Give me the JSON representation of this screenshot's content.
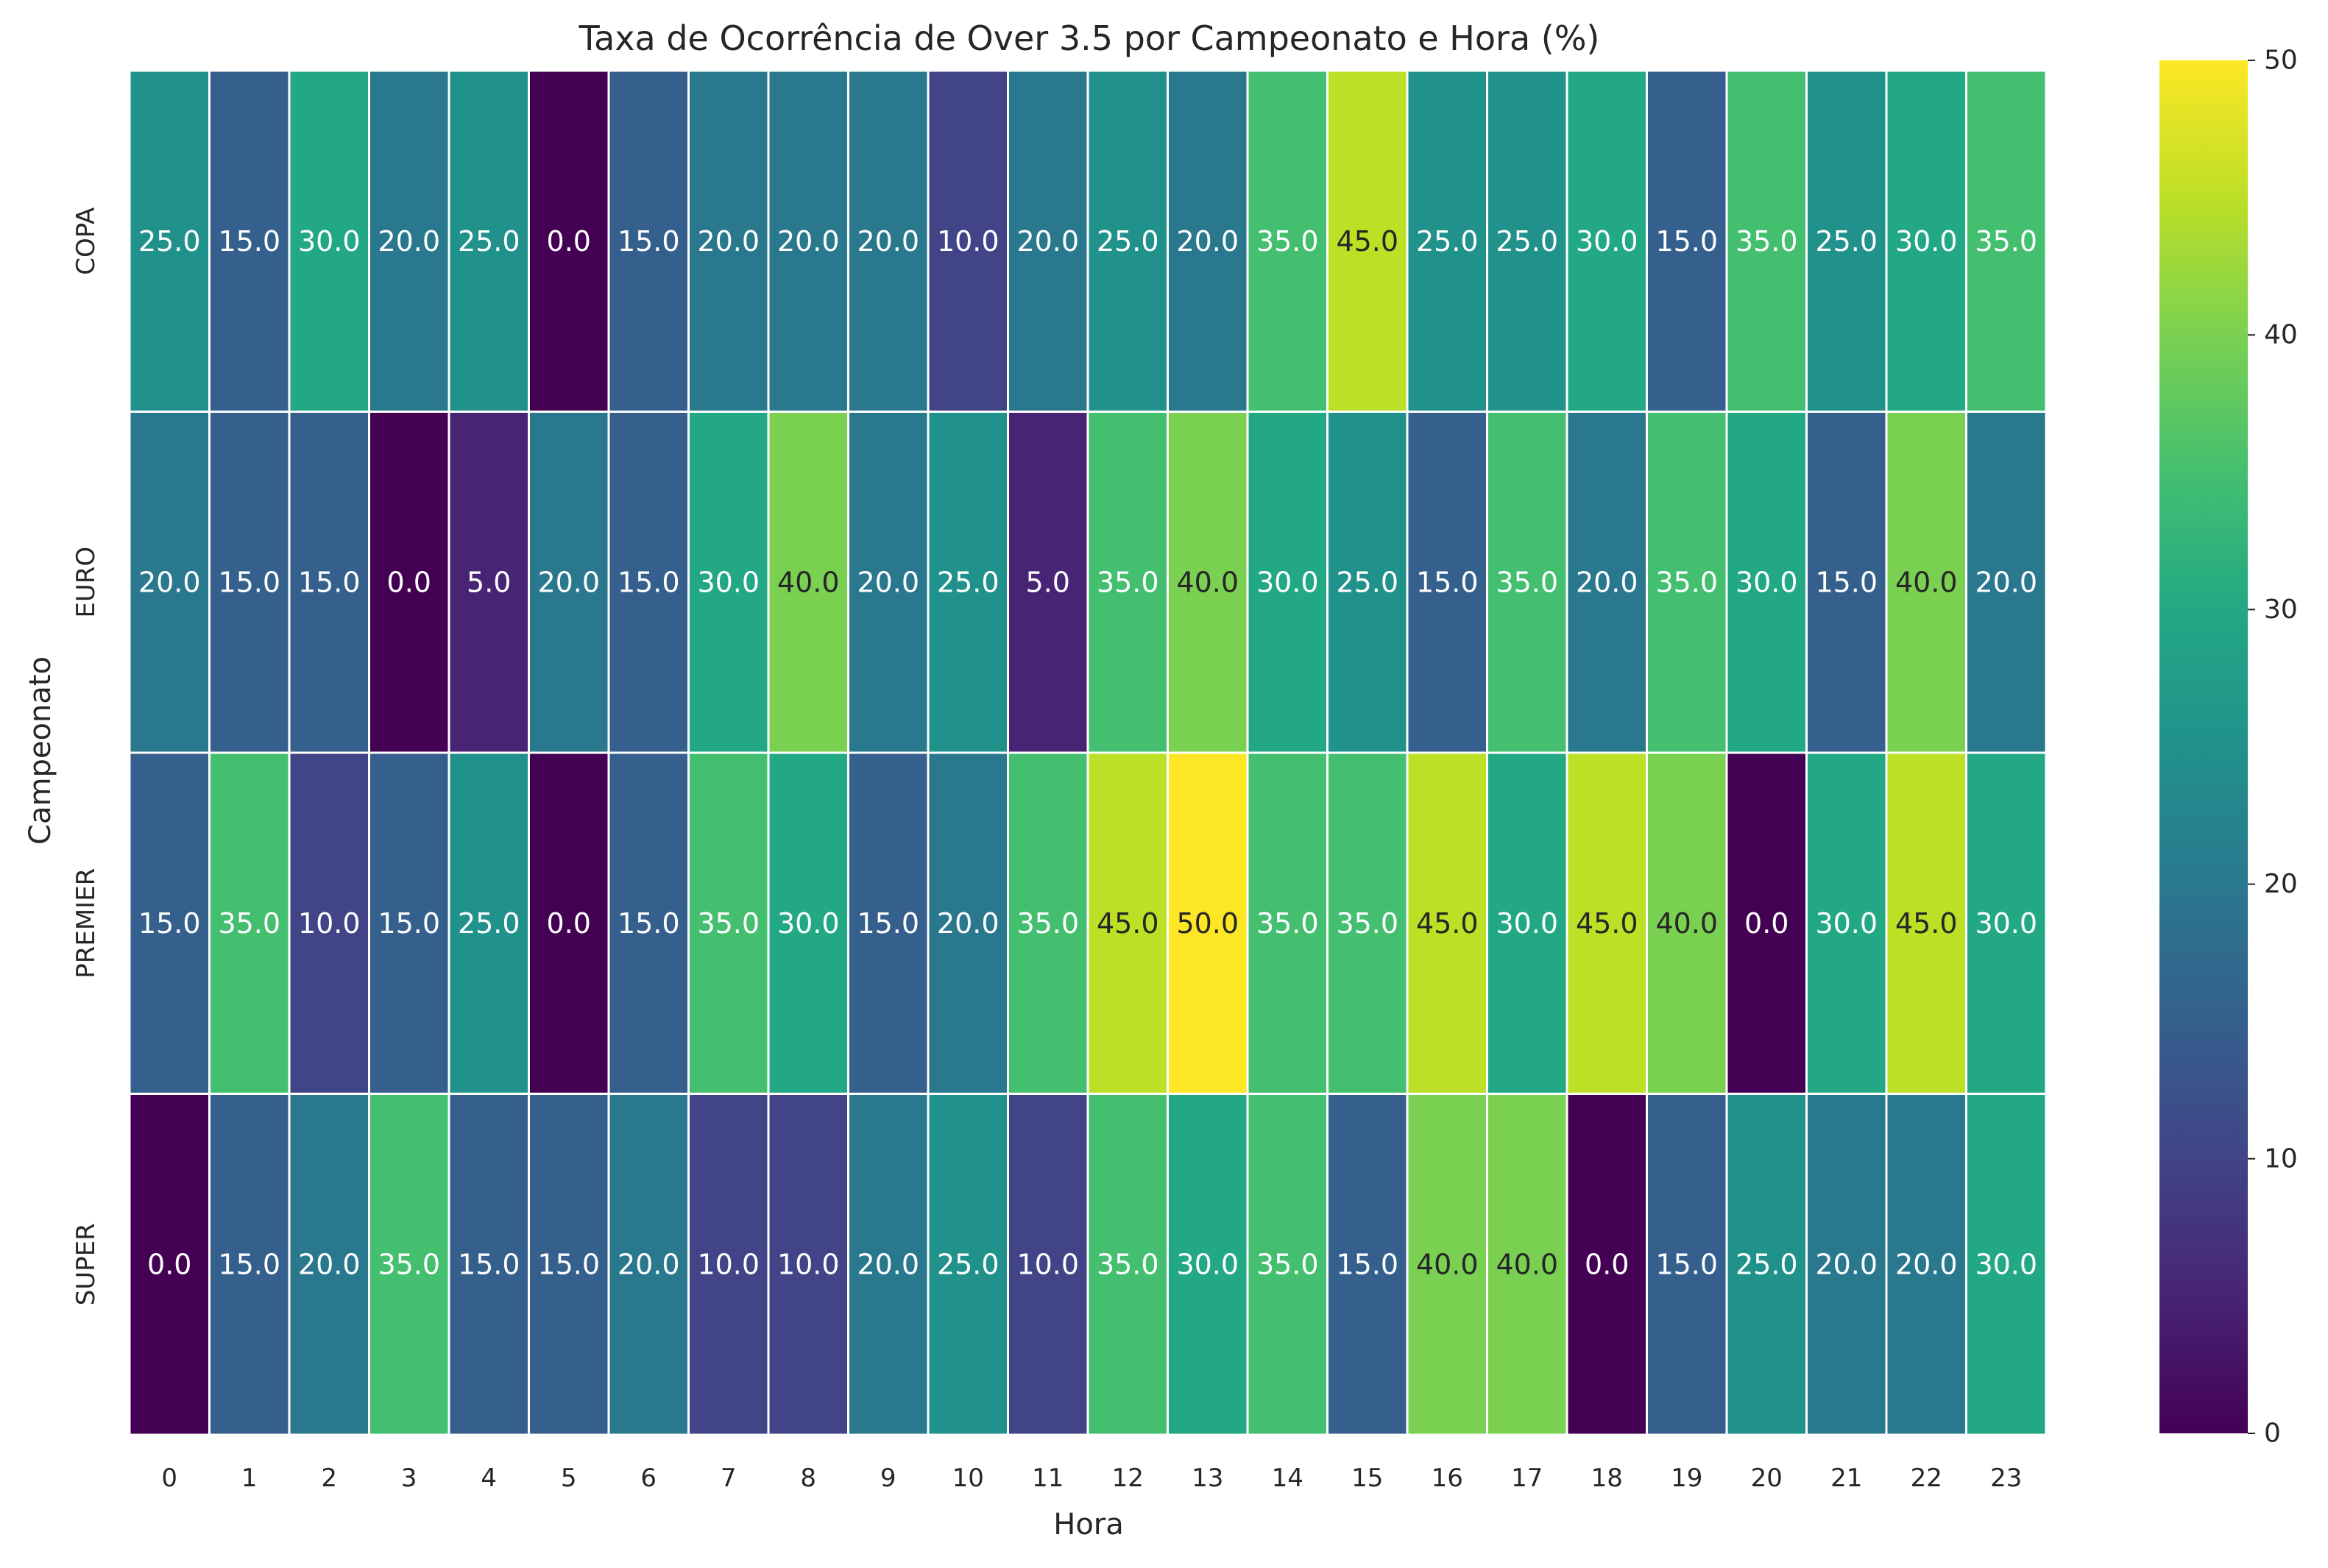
{
  "chart_data": {
    "type": "heatmap",
    "title": "Taxa de Ocorrência de Over 3.5 por Campeonato e Hora (%)",
    "xlabel": "Hora",
    "ylabel": "Campeonato",
    "x": [
      "0",
      "1",
      "2",
      "3",
      "4",
      "5",
      "6",
      "7",
      "8",
      "9",
      "10",
      "11",
      "12",
      "13",
      "14",
      "15",
      "16",
      "17",
      "18",
      "19",
      "20",
      "21",
      "22",
      "23"
    ],
    "y": [
      "COPA",
      "EURO",
      "PREMIER",
      "SUPER"
    ],
    "values": [
      [
        25,
        15,
        30,
        20,
        25,
        0,
        15,
        20,
        20,
        20,
        10,
        20,
        25,
        20,
        35,
        45,
        25,
        25,
        30,
        15,
        35,
        25,
        30,
        35
      ],
      [
        20,
        15,
        15,
        0,
        5,
        20,
        15,
        30,
        40,
        20,
        25,
        5,
        35,
        40,
        30,
        25,
        15,
        35,
        20,
        35,
        30,
        15,
        40,
        20
      ],
      [
        15,
        35,
        10,
        15,
        25,
        0,
        15,
        35,
        30,
        15,
        20,
        35,
        45,
        50,
        35,
        35,
        45,
        30,
        45,
        40,
        0,
        30,
        45,
        30
      ],
      [
        0,
        15,
        20,
        35,
        15,
        15,
        20,
        10,
        10,
        20,
        25,
        10,
        35,
        30,
        35,
        15,
        40,
        40,
        0,
        15,
        25,
        20,
        20,
        30
      ]
    ],
    "value_format": "0.0",
    "colormap": "viridis",
    "vmin": 0,
    "vmax": 50,
    "colorbar_ticks": [
      "0",
      "10",
      "20",
      "30",
      "40",
      "50"
    ],
    "grid": false,
    "cell_border_color": "#ffffff"
  }
}
